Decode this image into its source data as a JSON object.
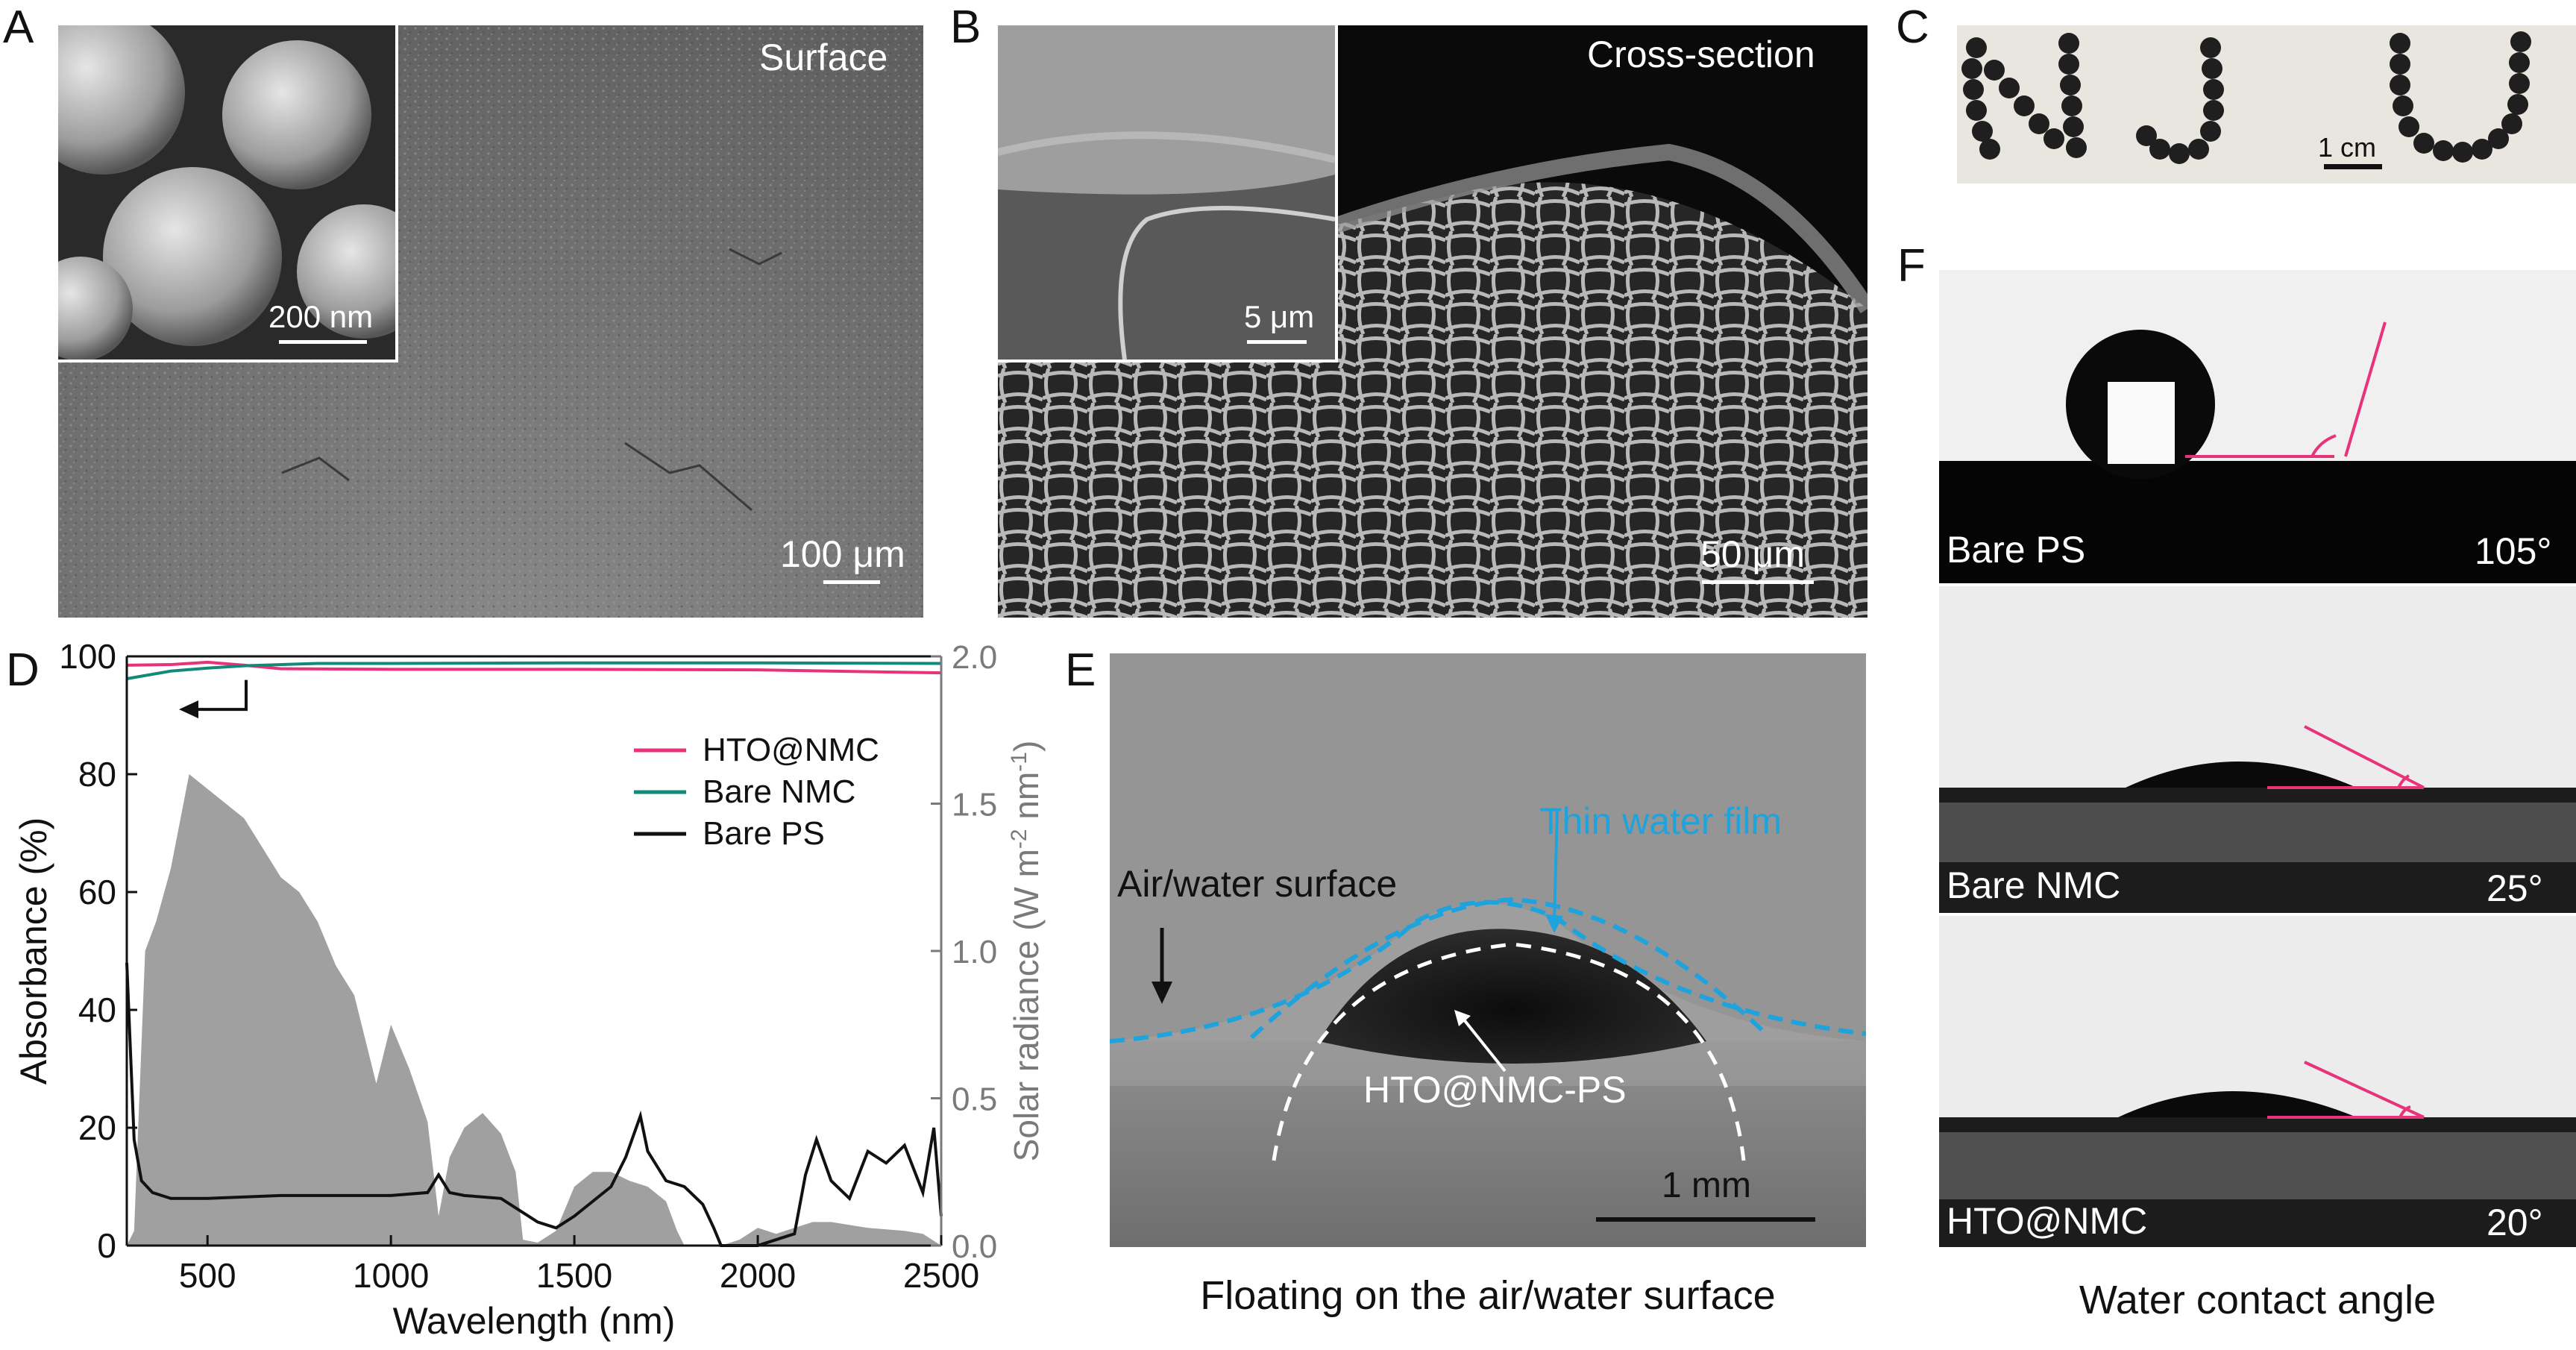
{
  "panels": {
    "A": {
      "label": "A",
      "title": "Surface",
      "inset_scale": "200 nm",
      "scale": "100 μm"
    },
    "B": {
      "label": "B",
      "title": "Cross-section",
      "inset_scale": "5 μm",
      "scale": "50 μm"
    },
    "C": {
      "label": "C",
      "scale": "1 cm",
      "letters": [
        "N",
        "J",
        "U"
      ]
    },
    "D": {
      "label": "D"
    },
    "E": {
      "label": "E",
      "film_label": "Thin water film",
      "surface_label": "Air/water surface",
      "sample_label": "HTO@NMC-PS",
      "scale": "1 mm",
      "caption": "Floating on the air/water surface"
    },
    "F": {
      "label": "F",
      "caption": "Water contact angle",
      "rows": [
        {
          "name": "Bare PS",
          "angle": "105°"
        },
        {
          "name": "Bare NMC",
          "angle": "25°"
        },
        {
          "name": "HTO@NMC",
          "angle": "20°"
        }
      ]
    }
  },
  "chart_data": {
    "type": "line",
    "xlabel": "Wavelength (nm)",
    "ylabel": "Absorbance (%)",
    "y2label_main": "Solar radiance (W m",
    "y2label_sup1": "-2",
    "y2label_mid": " nm",
    "y2label_sup2": "-1",
    "y2label_end": ")",
    "xlim": [
      280,
      2500
    ],
    "ylim": [
      0,
      100
    ],
    "y2lim": [
      0,
      2.0
    ],
    "x_ticks": [
      "500",
      "1000",
      "1500",
      "2000",
      "2500"
    ],
    "y_ticks": [
      "0",
      "20",
      "40",
      "60",
      "80",
      "100"
    ],
    "y2_ticks": [
      "0.0",
      "0.5",
      "1.0",
      "1.5",
      "2.0"
    ],
    "legend_position": "top-right",
    "series": [
      {
        "name": "HTO@NMC",
        "color": "#e8337a",
        "axis": "left",
        "x": [
          280,
          400,
          500,
          600,
          700,
          1000,
          1500,
          2000,
          2500
        ],
        "y": [
          98.5,
          98.6,
          99.0,
          98.5,
          97.9,
          97.8,
          97.8,
          97.7,
          97.2
        ]
      },
      {
        "name": "Bare NMC",
        "color": "#13897a",
        "axis": "left",
        "x": [
          280,
          400,
          500,
          600,
          800,
          1000,
          1500,
          2000,
          2500
        ],
        "y": [
          96.2,
          97.5,
          98.0,
          98.4,
          98.8,
          98.8,
          98.9,
          98.9,
          98.8
        ]
      },
      {
        "name": "Bare PS",
        "color": "#111111",
        "axis": "left",
        "x": [
          280,
          300,
          320,
          350,
          400,
          500,
          700,
          1000,
          1100,
          1130,
          1160,
          1200,
          1300,
          1400,
          1450,
          1500,
          1600,
          1640,
          1680,
          1700,
          1750,
          1800,
          1850,
          1880,
          1900,
          2000,
          2100,
          2130,
          2160,
          2200,
          2250,
          2300,
          2350,
          2400,
          2450,
          2480,
          2500
        ],
        "y": [
          48,
          18,
          11,
          9,
          8,
          8,
          8.5,
          8.5,
          9,
          12,
          9,
          8.5,
          8,
          4,
          3,
          5,
          10,
          15,
          22,
          16,
          11,
          10,
          7,
          3,
          0,
          0,
          2,
          12,
          18,
          11,
          8,
          16,
          14,
          17,
          9,
          20,
          5
        ]
      },
      {
        "name": "Solar radiance",
        "color": "#a0a0a0",
        "axis": "right",
        "style": "area",
        "x": [
          280,
          300,
          330,
          360,
          400,
          450,
          500,
          550,
          600,
          650,
          700,
          750,
          800,
          850,
          900,
          930,
          960,
          1000,
          1050,
          1100,
          1130,
          1160,
          1200,
          1250,
          1300,
          1340,
          1360,
          1400,
          1450,
          1500,
          1550,
          1600,
          1650,
          1700,
          1750,
          1780,
          1800,
          1850,
          1900,
          1950,
          2000,
          2050,
          2100,
          2150,
          2200,
          2300,
          2400,
          2450,
          2500
        ],
        "y": [
          0.0,
          0.05,
          1.0,
          1.1,
          1.28,
          1.6,
          1.55,
          1.5,
          1.45,
          1.35,
          1.25,
          1.2,
          1.1,
          0.95,
          0.85,
          0.7,
          0.55,
          0.75,
          0.6,
          0.42,
          0.1,
          0.3,
          0.4,
          0.45,
          0.38,
          0.25,
          0.02,
          0.01,
          0.05,
          0.2,
          0.25,
          0.25,
          0.22,
          0.2,
          0.15,
          0.05,
          0.0,
          0.0,
          0.0,
          0.02,
          0.06,
          0.04,
          0.06,
          0.08,
          0.08,
          0.06,
          0.05,
          0.04,
          0.0
        ]
      }
    ]
  }
}
